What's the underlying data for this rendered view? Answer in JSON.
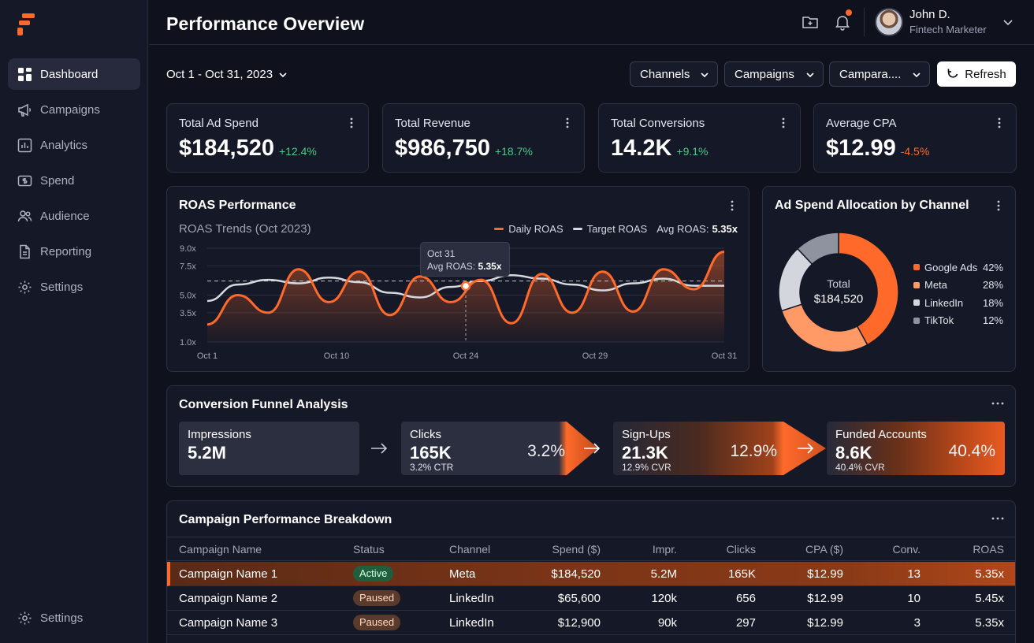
{
  "sidebar": {
    "logo_icon": "brand-logo-icon",
    "items": [
      {
        "label": "Dashboard",
        "icon": "grid-icon",
        "active": true
      },
      {
        "label": "Campaigns",
        "icon": "megaphone-icon"
      },
      {
        "label": "Analytics",
        "icon": "bar-chart-icon"
      },
      {
        "label": "Spend",
        "icon": "dollar-icon"
      },
      {
        "label": "Audience",
        "icon": "users-icon"
      },
      {
        "label": "Reporting",
        "icon": "document-icon"
      },
      {
        "label": "Settings",
        "icon": "gear-icon"
      }
    ],
    "bottom_item": {
      "label": "Settings",
      "icon": "gear-icon"
    }
  },
  "header": {
    "title": "Performance Overview",
    "user": {
      "name": "John D.",
      "role": "Fintech Marketer"
    }
  },
  "toolbar": {
    "date_range": "Oct 1 - Oct 31, 2023",
    "filters": [
      "Channels",
      "Campaigns",
      "Campara...."
    ],
    "refresh_label": "Refresh"
  },
  "kpis": [
    {
      "label": "Total Ad Spend",
      "value": "$184,520",
      "delta": "+12.4%",
      "trend": "up"
    },
    {
      "label": "Total Revenue",
      "value": "$986,750",
      "delta": "+18.7%",
      "trend": "up"
    },
    {
      "label": "Total Conversions",
      "value": "14.2K",
      "delta": "+9.1%",
      "trend": "up"
    },
    {
      "label": "Average CPA",
      "value": "$12.99",
      "delta": "-4.5%",
      "trend": "down"
    }
  ],
  "roas": {
    "title": "ROAS Performance",
    "subtitle": "ROAS Trends (Oct 2023)",
    "legend": {
      "daily": "Daily ROAS",
      "target": "Target ROAS",
      "avg_label": "Avg ROAS:",
      "avg_value": "5.35x"
    },
    "tooltip": {
      "date": "Oct 31",
      "label": "Avg ROAS:",
      "value": "5.35x"
    }
  },
  "chart_data": [
    {
      "type": "line",
      "y_ticks": [
        "9.0x",
        "7.5x",
        "5.0x",
        "3.5x",
        "1.0x"
      ],
      "x_ticks": [
        "Oct 1",
        "Oct 10",
        "Oct 24",
        "Oct 29",
        "Oct 31"
      ],
      "ylim": [
        1.0,
        9.0
      ],
      "target_line": 6.2,
      "series": [
        {
          "name": "Daily ROAS",
          "color": "#ff6a2b",
          "values": [
            2.5,
            5.0,
            3.5,
            7.2,
            4.4,
            7.0,
            3.3,
            6.6,
            4.4,
            6.3,
            2.6,
            6.8,
            3.5,
            7.0,
            3.6,
            7.2,
            5.5,
            8.7
          ]
        },
        {
          "name": "Target ROAS",
          "color": "#d6d8df",
          "values": [
            4.5,
            5.9,
            6.3,
            6.0,
            6.5,
            6.1,
            5.2,
            4.8,
            5.7,
            6.2,
            6.7,
            6.4,
            5.9,
            5.4,
            6.0,
            6.4,
            5.8,
            5.8
          ]
        }
      ]
    },
    {
      "type": "pie",
      "title": "Ad Spend Allocation by Channel",
      "center_label": "Total",
      "center_value": "$184,520",
      "slices": [
        {
          "name": "Google Ads",
          "value": 42,
          "label": "42%",
          "color": "#ff6a2b"
        },
        {
          "name": "Meta",
          "value": 28,
          "label": "28%",
          "color": "#ff9966"
        },
        {
          "name": "LinkedIn",
          "value": 18,
          "label": "18%",
          "color": "#d4d6de"
        },
        {
          "name": "TikTok",
          "value": 12,
          "label": "12%",
          "color": "#8f939f"
        }
      ]
    }
  ],
  "funnel": {
    "title": "Conversion Funnel Analysis",
    "stages": [
      {
        "label": "Impressions",
        "value": "5.2M",
        "sub": "",
        "rate": ""
      },
      {
        "label": "Clicks",
        "value": "165K",
        "sub": "3.2% CTR",
        "rate": "3.2%"
      },
      {
        "label": "Sign-Ups",
        "value": "21.3K",
        "sub": "12.9% CVR",
        "rate": "12.9%"
      },
      {
        "label": "Funded Accounts",
        "value": "8.6K",
        "sub": "40.4% CVR",
        "rate": "40.4%"
      }
    ]
  },
  "table": {
    "title": "Campaign Performance Breakdown",
    "columns": [
      "Campaign Name",
      "Status",
      "Channel",
      "Spend ($)",
      "Impr.",
      "Clicks",
      "CPA ($)",
      "Conv.",
      "ROAS"
    ],
    "rows": [
      {
        "name": "Campaign Name 1",
        "status": "Active",
        "channel": "Meta",
        "spend": "$184,520",
        "impr": "5.2M",
        "clicks": "165K",
        "cpa": "$12.99",
        "conv": "13",
        "roas": "5.35x"
      },
      {
        "name": "Campaign Name 2",
        "status": "Paused",
        "channel": "LinkedIn",
        "spend": "$65,600",
        "impr": "120k",
        "clicks": "656",
        "cpa": "$12.99",
        "conv": "10",
        "roas": "5.45x"
      },
      {
        "name": "Campaign Name 3",
        "status": "Paused",
        "channel": "LinkedIn",
        "spend": "$12,900",
        "impr": "90k",
        "clicks": "297",
        "cpa": "$12.99",
        "conv": "3",
        "roas": "5.35x"
      }
    ]
  }
}
